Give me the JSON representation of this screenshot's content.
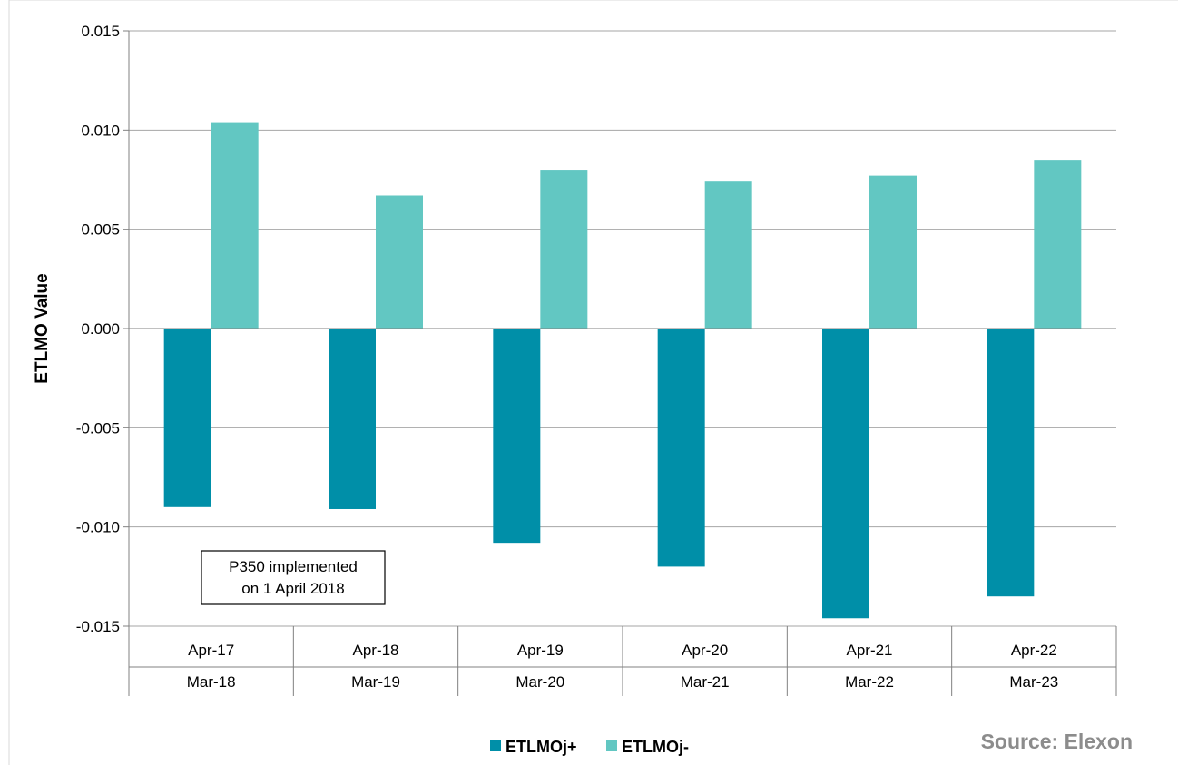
{
  "chart_data": {
    "type": "bar",
    "ylabel": "ETLMO Value",
    "ylim": [
      -0.015,
      0.015
    ],
    "yticks": [
      0.015,
      0.01,
      0.005,
      0.0,
      -0.005,
      -0.01,
      -0.015
    ],
    "ytick_labels": [
      "0.015",
      "0.010",
      "0.005",
      "0.000",
      "-0.005",
      "-0.010",
      "-0.015"
    ],
    "grid": true,
    "legend_position": "bottom",
    "categories": [
      {
        "line1": "Apr-17",
        "line2": "Mar-18"
      },
      {
        "line1": "Apr-18",
        "line2": "Mar-19"
      },
      {
        "line1": "Apr-19",
        "line2": "Mar-20"
      },
      {
        "line1": "Apr-20",
        "line2": "Mar-21"
      },
      {
        "line1": "Apr-21",
        "line2": "Mar-22"
      },
      {
        "line1": "Apr-22",
        "line2": "Mar-23"
      }
    ],
    "series": [
      {
        "name": "ETLMOj+",
        "color": "#008fa8",
        "values": [
          -0.009,
          -0.0091,
          -0.0108,
          -0.012,
          -0.0146,
          -0.0135
        ]
      },
      {
        "name": "ETLMOj-",
        "color": "#62c7c2",
        "values": [
          0.0104,
          0.0067,
          0.008,
          0.0074,
          0.0077,
          0.0085
        ]
      }
    ],
    "annotation": {
      "line1": "P350 implemented",
      "line2": "on 1 April 2018"
    },
    "source": "Source: Elexon"
  }
}
